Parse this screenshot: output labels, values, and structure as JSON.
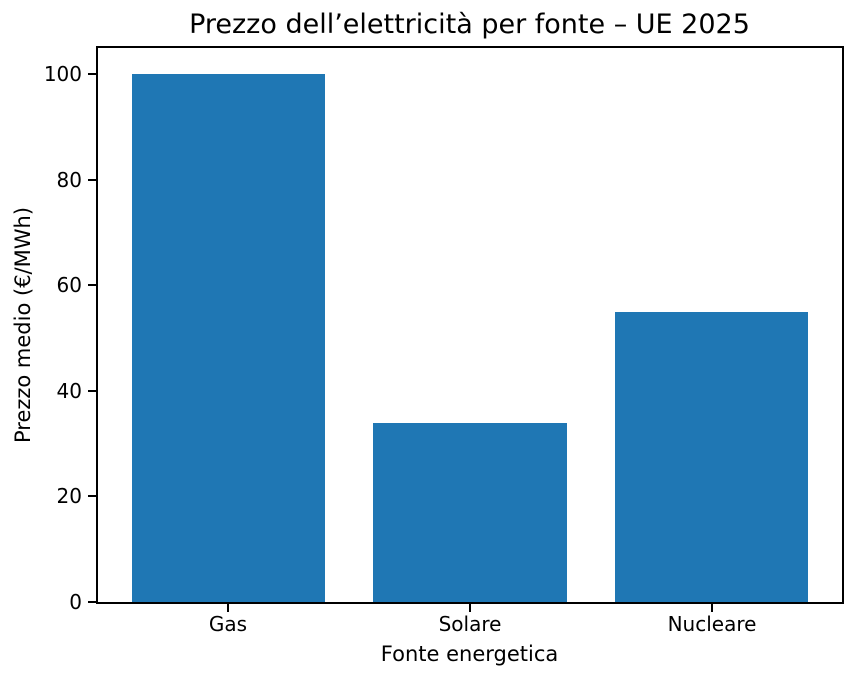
{
  "chart_data": {
    "type": "bar",
    "title": "Prezzo dell’elettricità per fonte – UE 2025",
    "xlabel": "Fonte energetica",
    "ylabel": "Prezzo medio (€/MWh)",
    "categories": [
      "Gas",
      "Solare",
      "Nucleare"
    ],
    "values": [
      100,
      34,
      55
    ],
    "yticks": [
      0,
      20,
      40,
      60,
      80,
      100
    ],
    "ylim": [
      0,
      105
    ],
    "bar_color": "#1f77b4",
    "spine_color": "#000000",
    "text_color": "#000000",
    "background": "#ffffff",
    "grid": false,
    "legend": false
  }
}
